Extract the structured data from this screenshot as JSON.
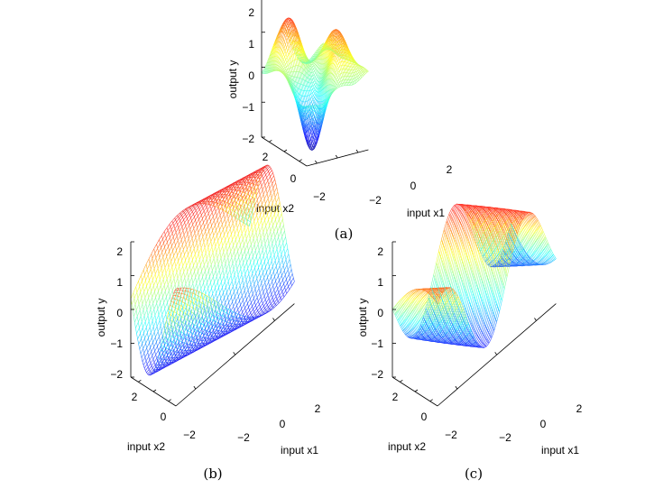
{
  "chart_data": [
    {
      "type": "surface",
      "panel": "a",
      "caption": "(a)",
      "xlabel": "input x1",
      "ylabel": "input x2",
      "zlabel": "output y",
      "xticks": [
        "−2",
        "0",
        "2"
      ],
      "yticks": [
        "2",
        "0",
        "−2"
      ],
      "zticks": [
        "2",
        "1",
        "0",
        "−1",
        "−2"
      ],
      "xlim": [
        -3,
        3
      ],
      "ylim": [
        -3,
        3
      ],
      "zlim": [
        -2,
        2
      ],
      "colormap": "jet",
      "mesh": "wireframe",
      "grid": false,
      "components": [
        {
          "amp": 1.3,
          "cx": -1.0,
          "cy": 1.8,
          "sx": 0.9,
          "sy": 1.0
        },
        {
          "amp": -1.9,
          "cx": -1.4,
          "cy": -1.6,
          "sx": 0.8,
          "sy": 0.9
        },
        {
          "amp": 1.1,
          "cx": 2.0,
          "cy": -0.2,
          "sx": 0.7,
          "sy": 1.2
        },
        {
          "amp": -0.6,
          "cx": 0.2,
          "cy": 0.2,
          "sx": 0.9,
          "sy": 0.9
        },
        {
          "amp": 0.7,
          "cx": 0.8,
          "cy": -1.8,
          "sx": 0.7,
          "sy": 0.8
        }
      ],
      "ripple": {
        "amp": 0.25,
        "fx": 1.4,
        "fy": 1.1
      }
    },
    {
      "type": "surface",
      "panel": "b",
      "caption": "(b)",
      "xlabel": "input x1",
      "ylabel": "input x2",
      "zlabel": "output y",
      "xticks": [
        "−2",
        "0",
        "2"
      ],
      "yticks": [
        "2",
        "0",
        "−2"
      ],
      "zticks": [
        "2",
        "1",
        "0",
        "−1",
        "−2"
      ],
      "xlim": [
        -3,
        3
      ],
      "ylim": [
        -3,
        3
      ],
      "zlim": [
        -2,
        2
      ],
      "colormap": "jet",
      "mesh": "wireframe",
      "grid": false,
      "wave": {
        "amp": 1.6,
        "fx": 0.55,
        "fy": 0.75,
        "phase": -0.4
      }
    },
    {
      "type": "surface",
      "panel": "c",
      "caption": "(c)",
      "xlabel": "input x1",
      "ylabel": "input x2",
      "zlabel": "output y",
      "xticks": [
        "−2",
        "0",
        "2"
      ],
      "yticks": [
        "2",
        "0",
        "−2"
      ],
      "zticks": [
        "2",
        "1",
        "0",
        "−1",
        "−2"
      ],
      "xlim": [
        -3,
        3
      ],
      "ylim": [
        -3,
        3
      ],
      "zlim": [
        -2,
        2
      ],
      "colormap": "jet",
      "mesh": "wireframe",
      "grid": false,
      "wave": {
        "amp": 1.5,
        "fx": 1.5,
        "fy": 0.35,
        "phase": 0.3,
        "envelope": 0.22
      }
    }
  ]
}
